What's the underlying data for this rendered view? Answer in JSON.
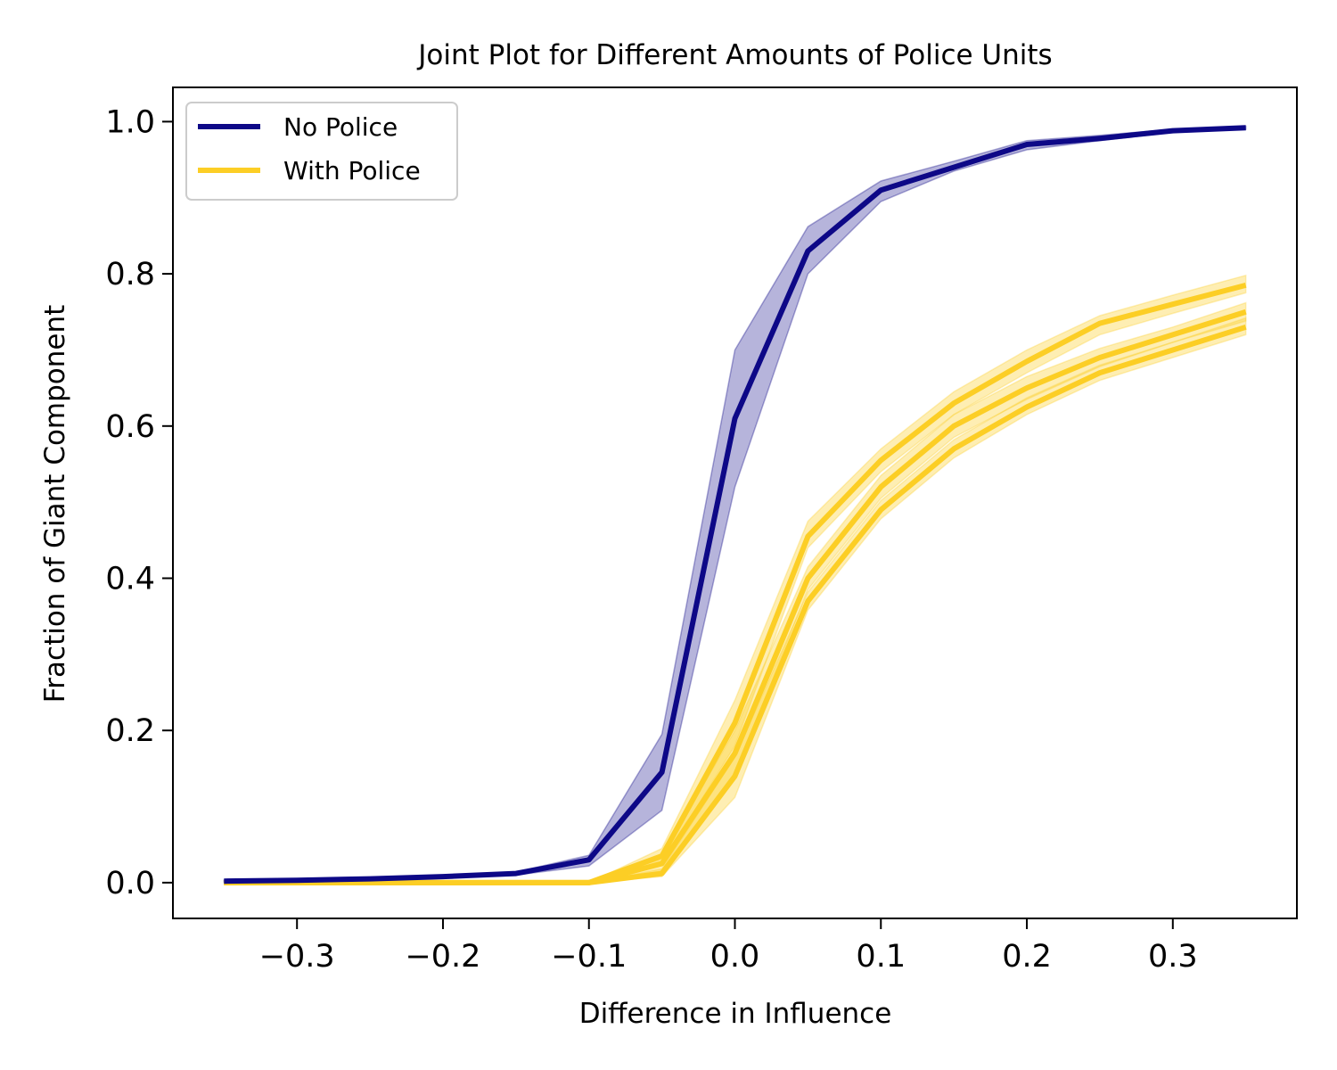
{
  "chart_data": {
    "type": "line",
    "title": "Joint Plot for Different Amounts of Police Units",
    "xlabel": "Difference in Influence",
    "ylabel": "Fraction of Giant Component",
    "xlim": [
      -0.385,
      0.385
    ],
    "ylim": [
      -0.047,
      1.045
    ],
    "xticks": [
      -0.3,
      -0.2,
      -0.1,
      0.0,
      0.1,
      0.2,
      0.3
    ],
    "xtick_labels": [
      "−0.3",
      "−0.2",
      "−0.1",
      "0.0",
      "0.1",
      "0.2",
      "0.3"
    ],
    "yticks": [
      0.0,
      0.2,
      0.4,
      0.6,
      0.8,
      1.0
    ],
    "ytick_labels": [
      "0.0",
      "0.2",
      "0.4",
      "0.6",
      "0.8",
      "1.0"
    ],
    "grid": false,
    "legend_position": "top-left",
    "x": [
      -0.35,
      -0.3,
      -0.25,
      -0.2,
      -0.15,
      -0.1,
      -0.05,
      0.0,
      0.05,
      0.1,
      0.15,
      0.2,
      0.25,
      0.3,
      0.35
    ],
    "series": [
      {
        "name": "No Police",
        "color": "#0d0887",
        "band_color": "#0d0887",
        "values": [
          0.002,
          0.003,
          0.005,
          0.008,
          0.012,
          0.03,
          0.145,
          0.61,
          0.83,
          0.91,
          0.94,
          0.97,
          0.978,
          0.988,
          0.992
        ],
        "lower": [
          0.001,
          0.002,
          0.004,
          0.007,
          0.01,
          0.022,
          0.095,
          0.52,
          0.8,
          0.895,
          0.935,
          0.963,
          0.975,
          0.986,
          0.99
        ],
        "upper": [
          0.003,
          0.004,
          0.006,
          0.009,
          0.014,
          0.036,
          0.195,
          0.7,
          0.862,
          0.922,
          0.948,
          0.975,
          0.982,
          0.99,
          0.994
        ]
      },
      {
        "name": "With Police",
        "color": "#fcce25",
        "band_color": "#fcce25",
        "values": [
          0.0,
          0.0,
          0.0,
          0.0,
          0.0,
          0.0,
          0.035,
          0.21,
          0.455,
          0.555,
          0.63,
          0.685,
          0.735,
          0.76,
          0.785
        ],
        "lower": [
          0.0,
          0.0,
          0.0,
          0.0,
          0.0,
          0.0,
          0.025,
          0.18,
          0.44,
          0.54,
          0.615,
          0.67,
          0.72,
          0.748,
          0.775
        ],
        "upper": [
          0.0,
          0.0,
          0.0,
          0.0,
          0.0,
          0.0,
          0.045,
          0.24,
          0.475,
          0.57,
          0.645,
          0.7,
          0.745,
          0.772,
          0.798
        ]
      },
      {
        "name": "",
        "color": "#fcce25",
        "band_color": "#fcce25",
        "values": [
          0.0,
          0.0,
          0.0,
          0.0,
          0.0,
          0.0,
          0.025,
          0.17,
          0.4,
          0.52,
          0.6,
          0.65,
          0.69,
          0.72,
          0.75
        ],
        "lower": [
          0.0,
          0.0,
          0.0,
          0.0,
          0.0,
          0.0,
          0.015,
          0.14,
          0.385,
          0.505,
          0.585,
          0.635,
          0.678,
          0.71,
          0.738
        ],
        "upper": [
          0.0,
          0.0,
          0.0,
          0.0,
          0.0,
          0.0,
          0.035,
          0.2,
          0.415,
          0.535,
          0.615,
          0.665,
          0.702,
          0.73,
          0.762
        ]
      },
      {
        "name": "",
        "color": "#fcce25",
        "band_color": "#fcce25",
        "values": [
          0.0,
          0.0,
          0.0,
          0.0,
          0.0,
          0.0,
          0.012,
          0.14,
          0.37,
          0.49,
          0.57,
          0.625,
          0.67,
          0.7,
          0.73
        ],
        "lower": [
          0.0,
          0.0,
          0.0,
          0.0,
          0.0,
          0.0,
          0.008,
          0.112,
          0.358,
          0.478,
          0.558,
          0.615,
          0.66,
          0.69,
          0.72
        ],
        "upper": [
          0.0,
          0.0,
          0.0,
          0.0,
          0.0,
          0.0,
          0.018,
          0.165,
          0.382,
          0.502,
          0.582,
          0.637,
          0.68,
          0.71,
          0.742
        ]
      }
    ]
  }
}
